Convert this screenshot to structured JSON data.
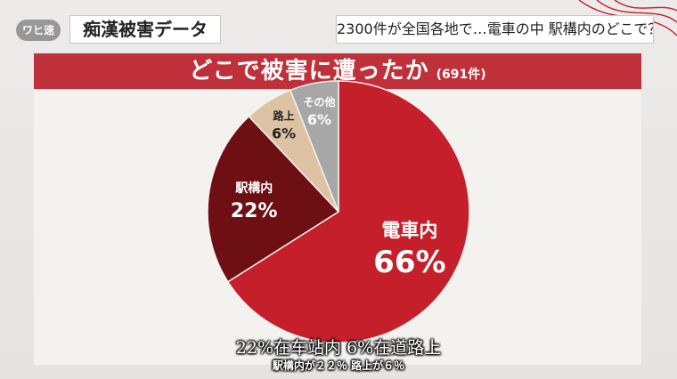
{
  "header": {
    "logo_text": "ワヒ速",
    "category": "痴漢被害データ",
    "headline": "2300件が全国各地で…電車の中 駅構内のどこで？"
  },
  "chart": {
    "title": "どこで被害に遭ったか",
    "count_label": "(691件)"
  },
  "chart_data": {
    "type": "pie",
    "title": "どこで被害に遭ったか",
    "total_label": "(691件)",
    "slices": [
      {
        "label": "電車内",
        "value": 66,
        "value_label": "66%",
        "color": "#c41f2b",
        "text_color": "#ffffff"
      },
      {
        "label": "駅構内",
        "value": 22,
        "value_label": "22%",
        "color": "#6e0f14",
        "text_color": "#ffffff"
      },
      {
        "label": "路上",
        "value": 6,
        "value_label": "6%",
        "color": "#ddc3a3",
        "text_color": "#222222"
      },
      {
        "label": "その他",
        "value": 6,
        "value_label": "6%",
        "color": "#a7a7a7",
        "text_color": "#ffffff"
      }
    ]
  },
  "subtitles": {
    "line1": "22%在车站内 6%在道路上",
    "line2": "駅構内が２２％ 路上が６％"
  }
}
